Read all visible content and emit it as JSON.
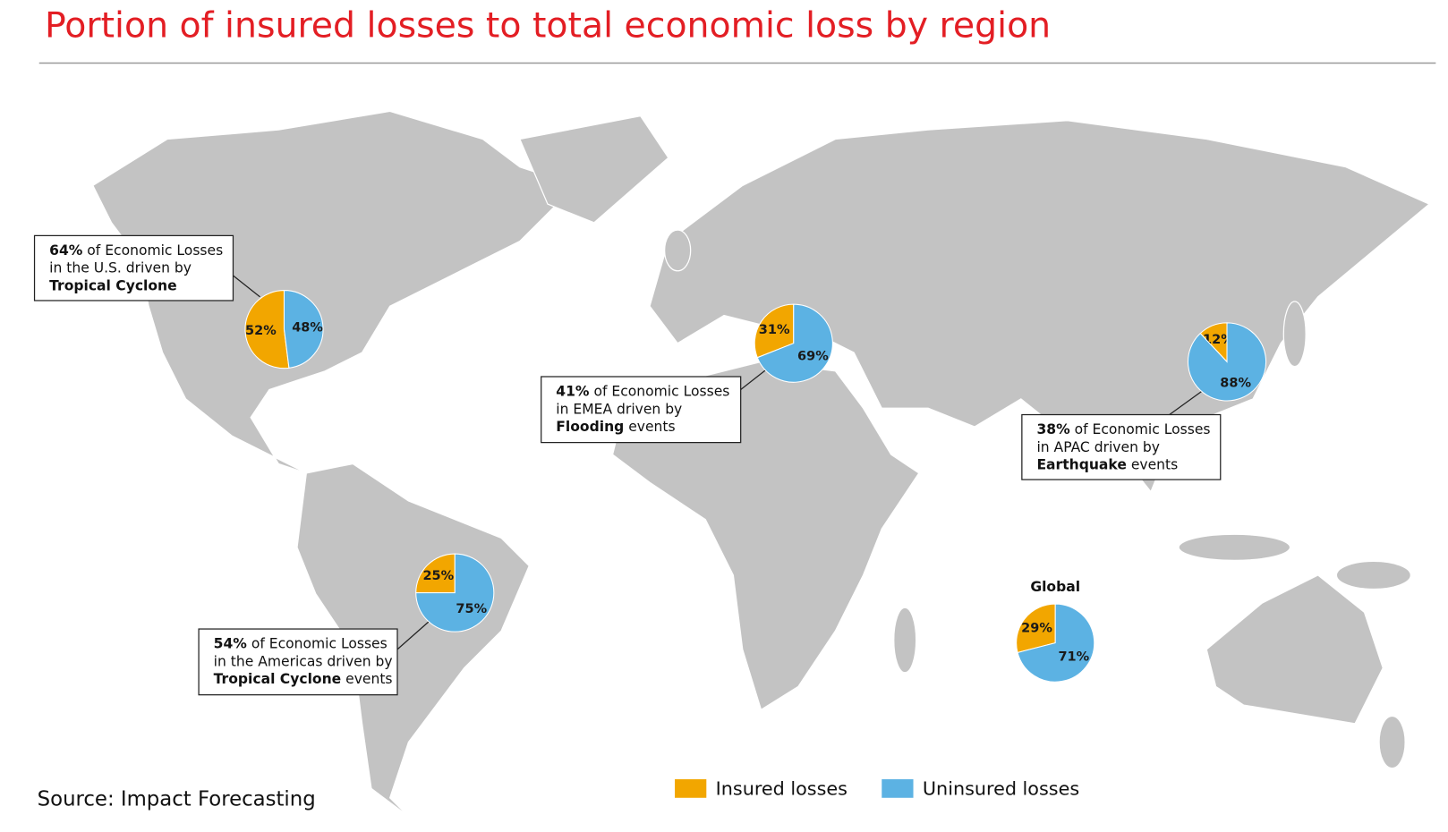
{
  "title": "Portion of insured losses to total economic loss by region",
  "source": "Source: Impact Forecasting",
  "legend": [
    {
      "name": "Insured losses",
      "color": "#f2a600"
    },
    {
      "name": "Uninsured losses",
      "color": "#5cb2e3"
    }
  ],
  "chart_data": [
    {
      "type": "pie",
      "values": [
        52,
        48
      ],
      "value_labels": [
        "52%",
        "48%"
      ]
    },
    {
      "type": "pie",
      "values": [
        31,
        69
      ],
      "value_labels": [
        "31%",
        "69%"
      ]
    },
    {
      "type": "pie",
      "values": [
        12,
        88
      ],
      "value_labels": [
        "12%",
        "88%"
      ]
    },
    {
      "type": "pie",
      "values": [
        25,
        75
      ],
      "value_labels": [
        "25%",
        "75%"
      ]
    },
    {
      "type": "pie",
      "title": "Global",
      "values": [
        29,
        71
      ],
      "value_labels": [
        "29%",
        "71%"
      ]
    }
  ],
  "callouts": [
    {
      "lines": [
        [
          {
            "text": "64%",
            "bold": true
          },
          {
            "text": " of Economic Losses",
            "bold": false
          }
        ],
        [
          {
            "text": "in the U.S. driven by",
            "bold": false
          }
        ],
        [
          {
            "text": "Tropical Cyclone",
            "bold": true
          }
        ]
      ]
    },
    {
      "lines": [
        [
          {
            "text": "41%",
            "bold": true
          },
          {
            "text": " of Economic Losses",
            "bold": false
          }
        ],
        [
          {
            "text": "in EMEA driven by",
            "bold": false
          }
        ],
        [
          {
            "text": "Flooding",
            "bold": true
          },
          {
            "text": " events",
            "bold": false
          }
        ]
      ]
    },
    {
      "lines": [
        [
          {
            "text": "38%",
            "bold": true
          },
          {
            "text": " of Economic Losses",
            "bold": false
          }
        ],
        [
          {
            "text": "in APAC driven by",
            "bold": false
          }
        ],
        [
          {
            "text": "Earthquake",
            "bold": true
          },
          {
            "text": " events",
            "bold": false
          }
        ]
      ]
    },
    {
      "lines": [
        [
          {
            "text": "54%",
            "bold": true
          },
          {
            "text": " of Economic Losses",
            "bold": false
          }
        ],
        [
          {
            "text": "in the Americas driven by",
            "bold": false
          }
        ],
        [
          {
            "text": "Tropical Cyclone",
            "bold": true
          },
          {
            "text": " events",
            "bold": false
          }
        ]
      ]
    }
  ]
}
